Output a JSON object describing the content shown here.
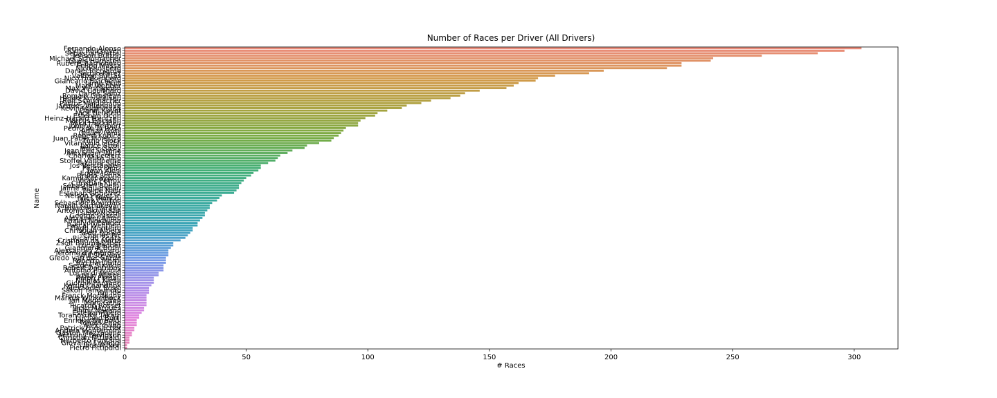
{
  "chart_data": {
    "type": "barh",
    "title": "Number of Races per Driver (All Drivers)",
    "x_label": "# Races",
    "y_label": "Name",
    "xlim": [
      0,
      318
    ],
    "xticks": [
      0,
      50,
      100,
      150,
      200,
      250,
      300
    ],
    "palette": [
      "#ea8c7a",
      "#d39a4b",
      "#a8a23e",
      "#76ac45",
      "#43ae74",
      "#3aab99",
      "#3ba4bb",
      "#6f9ae6",
      "#ad8eea",
      "#e283de",
      "#ea85b4"
    ],
    "categories": [
      "Fernando Alonso",
      "Kimi Räikkönen",
      "Sebastian Vettel",
      "Jenson Button",
      "Michael Schumacher",
      "Lewis Hamilton",
      "Rubens Barrichello",
      "Felipe Massa",
      "Nico Rosberg",
      "Daniel Ricciardo",
      "Sergio Pérez",
      "Valtteri Bottas",
      "Nico Hülkenberg",
      "Giancarlo Fisichella",
      "Jarno Trulli",
      "Mark Webber",
      "Max Verstappen",
      "David Coulthard",
      "Carlos Sainz",
      "Romain Grosjean",
      "Heikki Kovalainen",
      "Ralf Schumacher",
      "Pastor Maldonado",
      "Jacques Villeneuve",
      "Kevin Magnussen",
      "Daniil Kvyat",
      "Nick Heidfeld",
      "Esteban Ocon",
      "Heinz-Harald Frentzen",
      "Marcus Ericsson",
      "Mika Häkkinen",
      "Johnny Herbert",
      "Pedro de la Rosa",
      "Adrian Sutil",
      "Olivier Panis",
      "Robert Kubica",
      "Juan Pablo Montoya",
      "Timo Glock",
      "Vitantonio Liuzzi",
      "Lance Stroll",
      "Pierre Gasly",
      "Jean-Éric Vergne",
      "Alexander Wurz",
      "Charles Leclerc",
      "Mika Salo",
      "Stoffel Vandoorne",
      "Takuma Sato",
      "Jos Verstappen",
      "Pedro Diniz",
      "Jean Alesi",
      "Eddie Irvine",
      "Bruno Senna",
      "Kamui Kobayashi",
      "Vitaly Petrov",
      "Christian Klien",
      "Sébastien Buemi",
      "Jaime Alguersuari",
      "Felipe Nasr",
      "Esteban Gutiérrez",
      "Nelson Piquet Jr.",
      "Jules Bianchi",
      "Max Chilton",
      "Sébastien Bourdais",
      "Narain Karthikeyan",
      "Brendon Hartley",
      "Antonio Giovinazzi",
      "Lando Norris",
      "George Russell",
      "Alexander Albon",
      "Kazuki Nakajima",
      "Jolyon Palmer",
      "Pascal Wehrlein",
      "Tiago Monteiro",
      "Christijan Albers",
      "Scott Speed",
      "Charles Pic",
      "Ricardo Zonta",
      "Cristiano da Matta",
      "Zsolt Baumgartner",
      "Luca Badoer",
      "Gianmaria Bruni",
      "Alessandro Zanardi",
      "Jérôme d'Ambrosio",
      "Will Stevens",
      "Giedo van der Garde",
      "Roberto Merhi",
      "Rio Haryanto",
      "Sergey Sirotkin",
      "Robert Doornbos",
      "Antônio Pizzonia",
      "Lucas di Grassi",
      "Justin Wilson",
      "Ralph Firman",
      "Nicolas Kiesa",
      "Giorgio Pantano",
      "Karun Chandhok",
      "Alexander Rossi",
      "Sakon Yamamoto",
      "Yuji Ide",
      "Franck Montagny",
      "Markus Winkelhock",
      "Jan Magnussen",
      "Marc Gené",
      "Ricardo Rosset",
      "Tarso Marques",
      "Shinji Nakano",
      "Esteban Tuero",
      "Toranosuke Takagi",
      "Luciano Burti",
      "Enrique Bernoldi",
      "Tomáš Enge",
      "Alex Yoong",
      "Patrick Friesacher",
      "Andrea Montermini",
      "Gastón Mazzacane",
      "Anthony Davidson",
      "Christian Fittipaldi",
      "Norberto Fontana",
      "Giovanni Lavaggi",
      "Jack Aitken",
      "Pietro Fittipaldi"
    ],
    "values": [
      303,
      296,
      285,
      262,
      242,
      241,
      229,
      229,
      223,
      197,
      191,
      177,
      170,
      169,
      162,
      160,
      157,
      146,
      140,
      138,
      134,
      126,
      122,
      116,
      114,
      108,
      104,
      103,
      99,
      97,
      96,
      96,
      91,
      90,
      89,
      88,
      86,
      85,
      80,
      75,
      74,
      69,
      67,
      64,
      63,
      62,
      59,
      56,
      56,
      55,
      53,
      52,
      50,
      49,
      48,
      47,
      47,
      46,
      45,
      40,
      39,
      38,
      36,
      35,
      35,
      34,
      33,
      33,
      32,
      31,
      30,
      30,
      28,
      28,
      27,
      26,
      25,
      23,
      20,
      20,
      19,
      18,
      18,
      18,
      17,
      17,
      17,
      16,
      16,
      16,
      14,
      14,
      12,
      12,
      12,
      11,
      10,
      10,
      10,
      9,
      9,
      9,
      9,
      9,
      8,
      8,
      7,
      6,
      6,
      5,
      5,
      5,
      4,
      4,
      3,
      3,
      2,
      2,
      2,
      1,
      1
    ]
  }
}
